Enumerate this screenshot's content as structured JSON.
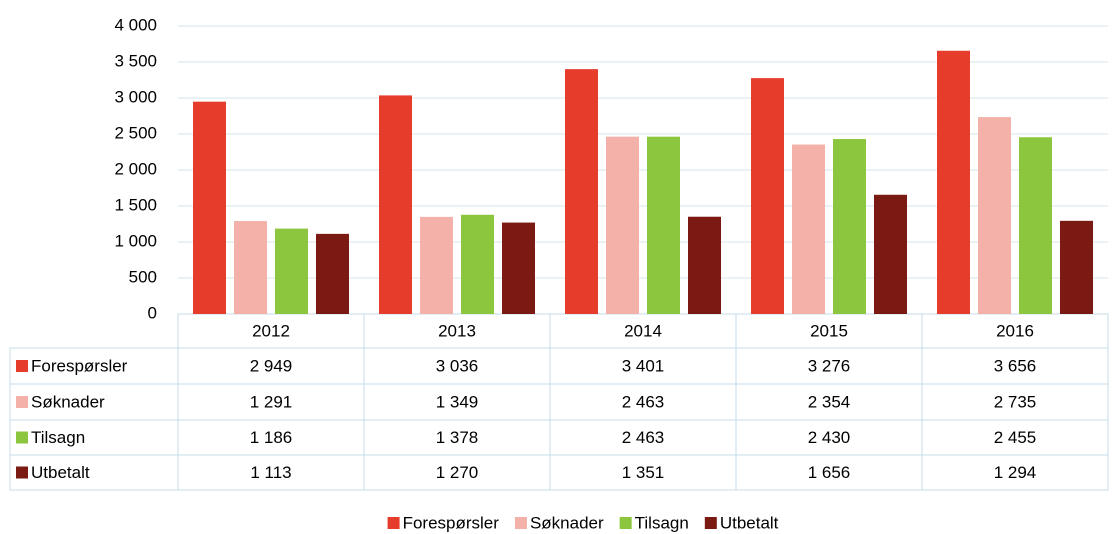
{
  "chart_data": {
    "type": "bar",
    "categories": [
      "2012",
      "2013",
      "2014",
      "2015",
      "2016"
    ],
    "series": [
      {
        "name": "Forespørsler",
        "color": "#e63c2b",
        "values": [
          2949,
          3036,
          3401,
          3276,
          3656
        ],
        "value_labels": [
          "2 949",
          "3 036",
          "3 401",
          "3 276",
          "3 656"
        ]
      },
      {
        "name": "Søknader",
        "color": "#f4b1a9",
        "values": [
          1291,
          1349,
          2463,
          2354,
          2735
        ],
        "value_labels": [
          "1 291",
          "1 349",
          "2 463",
          "2 354",
          "2 735"
        ]
      },
      {
        "name": "Tilsagn",
        "color": "#8cc63e",
        "values": [
          1186,
          1378,
          2463,
          2430,
          2455
        ],
        "value_labels": [
          "1 186",
          "1 378",
          "2 463",
          "2 430",
          "2 455"
        ]
      },
      {
        "name": "Utbetalt",
        "color": "#7b1a12",
        "values": [
          1113,
          1270,
          1351,
          1656,
          1294
        ],
        "value_labels": [
          "1 113",
          "1 270",
          "1 351",
          "1 656",
          "1 294"
        ]
      }
    ],
    "ylim": [
      0,
      4000
    ],
    "yticks": [
      0,
      500,
      {
        "value": 1000,
        "label": "1 000"
      },
      {
        "value": 1500,
        "label": "1 500"
      },
      {
        "value": 2000,
        "label": "2 000"
      },
      {
        "value": 2500,
        "label": "2 500"
      },
      {
        "value": 3000,
        "label": "3 000"
      },
      {
        "value": 3500,
        "label": "3 500"
      },
      {
        "value": 4000,
        "label": "4 000"
      }
    ],
    "grid": true,
    "legend": "bottom"
  }
}
